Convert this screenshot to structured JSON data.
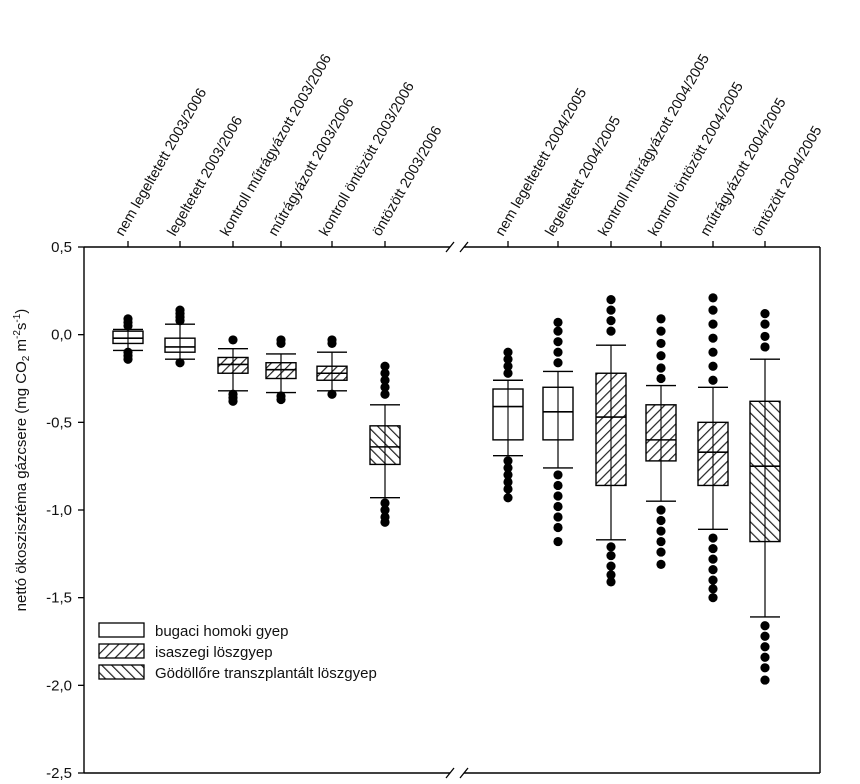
{
  "chart_data": {
    "type": "box",
    "ylabel_main": "nettó ökoszisztéma gázcsere (mg CO",
    "ylabel_sub": "2",
    "ylabel_mid": " m",
    "ylabel_sup1": "-2",
    "ylabel_s": "s",
    "ylabel_sup2": "-1",
    "ylabel_end": ")",
    "ylim": [
      -2.5,
      0.5
    ],
    "yticks": [
      {
        "value": 0.5,
        "label": "0,5"
      },
      {
        "value": 0.0,
        "label": "0,0"
      },
      {
        "value": -0.5,
        "label": "-0,5"
      },
      {
        "value": -1.0,
        "label": "-1,0"
      },
      {
        "value": -1.5,
        "label": "-1,5"
      },
      {
        "value": -2.0,
        "label": "-2,0"
      },
      {
        "value": -2.5,
        "label": "-2,5"
      }
    ],
    "axis_break": true,
    "legend_position": "bottom-left",
    "legend": [
      {
        "label": "bugaci homoki gyep",
        "pattern": "none"
      },
      {
        "label": "isaszegi löszgyep",
        "pattern": "hatch-right"
      },
      {
        "label": "Gödöllőre transzplantált löszgyep",
        "pattern": "hatch-left"
      }
    ],
    "categories": [
      {
        "label": "nem legeltetett 2003/2006",
        "pattern": "none",
        "q1": -0.05,
        "median": -0.02,
        "q3": 0.02,
        "whisker_low": -0.09,
        "whisker_high": 0.03,
        "out_low": [
          -0.1,
          -0.12,
          -0.14
        ],
        "out_high": [
          0.05,
          0.07,
          0.09
        ]
      },
      {
        "label": "legeltetett 2003/2006",
        "pattern": "none",
        "q1": -0.1,
        "median": -0.07,
        "q3": -0.02,
        "whisker_low": -0.14,
        "whisker_high": 0.06,
        "out_low": [
          -0.16
        ],
        "out_high": [
          0.08,
          0.1,
          0.12,
          0.14
        ]
      },
      {
        "label": "kontroll műtrágyázott 2003/2006",
        "pattern": "hatch-right",
        "q1": -0.22,
        "median": -0.17,
        "q3": -0.13,
        "whisker_low": -0.32,
        "whisker_high": -0.08,
        "out_low": [
          -0.34,
          -0.36,
          -0.38
        ],
        "out_high": [
          -0.03
        ]
      },
      {
        "label": "műtrágyázott 2003/2006",
        "pattern": "hatch-right",
        "q1": -0.25,
        "median": -0.2,
        "q3": -0.16,
        "whisker_low": -0.33,
        "whisker_high": -0.11,
        "out_low": [
          -0.35,
          -0.37
        ],
        "out_high": [
          -0.03,
          -0.05
        ]
      },
      {
        "label": "kontroll öntözött 2003/2006",
        "pattern": "hatch-right",
        "q1": -0.26,
        "median": -0.22,
        "q3": -0.18,
        "whisker_low": -0.32,
        "whisker_high": -0.1,
        "out_low": [
          -0.34
        ],
        "out_high": [
          -0.03,
          -0.05
        ]
      },
      {
        "label": "öntözött 2003/2006",
        "pattern": "hatch-left",
        "q1": -0.74,
        "median": -0.64,
        "q3": -0.52,
        "whisker_low": -0.93,
        "whisker_high": -0.4,
        "out_low": [
          -0.96,
          -1.0,
          -1.04,
          -1.07
        ],
        "out_high": [
          -0.18,
          -0.22,
          -0.26,
          -0.3,
          -0.34
        ]
      },
      {
        "label": "nem legeltetett 2004/2005",
        "pattern": "none",
        "q1": -0.6,
        "median": -0.41,
        "q3": -0.31,
        "whisker_low": -0.69,
        "whisker_high": -0.26,
        "out_low": [
          -0.72,
          -0.76,
          -0.8,
          -0.84,
          -0.88,
          -0.93
        ],
        "out_high": [
          -0.1,
          -0.14,
          -0.18,
          -0.22
        ]
      },
      {
        "label": "legeltetett 2004/2005",
        "pattern": "none",
        "q1": -0.6,
        "median": -0.44,
        "q3": -0.3,
        "whisker_low": -0.76,
        "whisker_high": -0.21,
        "out_low": [
          -0.8,
          -0.86,
          -0.92,
          -0.98,
          -1.04,
          -1.1,
          -1.18
        ],
        "out_high": [
          0.07,
          0.02,
          -0.04,
          -0.1,
          -0.16
        ]
      },
      {
        "label": "kontroll műtrágyázott 2004/2005",
        "pattern": "hatch-right",
        "q1": -0.86,
        "median": -0.47,
        "q3": -0.22,
        "whisker_low": -1.17,
        "whisker_high": -0.06,
        "out_low": [
          -1.21,
          -1.26,
          -1.32,
          -1.37,
          -1.41
        ],
        "out_high": [
          0.2,
          0.14,
          0.08,
          0.02
        ]
      },
      {
        "label": "kontroll öntözött 2004/2005",
        "pattern": "hatch-right",
        "q1": -0.72,
        "median": -0.6,
        "q3": -0.4,
        "whisker_low": -0.95,
        "whisker_high": -0.29,
        "out_low": [
          -1.0,
          -1.06,
          -1.12,
          -1.18,
          -1.24,
          -1.31
        ],
        "out_high": [
          0.09,
          0.02,
          -0.05,
          -0.12,
          -0.19,
          -0.25
        ]
      },
      {
        "label": "műtrágyázott 2004/2005",
        "pattern": "hatch-right",
        "q1": -0.86,
        "median": -0.67,
        "q3": -0.5,
        "whisker_low": -1.11,
        "whisker_high": -0.3,
        "out_low": [
          -1.16,
          -1.22,
          -1.28,
          -1.34,
          -1.4,
          -1.45,
          -1.5
        ],
        "out_high": [
          0.21,
          0.14,
          0.06,
          -0.02,
          -0.1,
          -0.18,
          -0.26
        ]
      },
      {
        "label": "öntözött 2004/2005",
        "pattern": "hatch-left",
        "q1": -1.18,
        "median": -0.75,
        "q3": -0.38,
        "whisker_low": -1.61,
        "whisker_high": -0.14,
        "out_low": [
          -1.66,
          -1.72,
          -1.78,
          -1.84,
          -1.9,
          -1.97
        ],
        "out_high": [
          0.12,
          0.06,
          -0.01,
          -0.07
        ]
      }
    ]
  }
}
